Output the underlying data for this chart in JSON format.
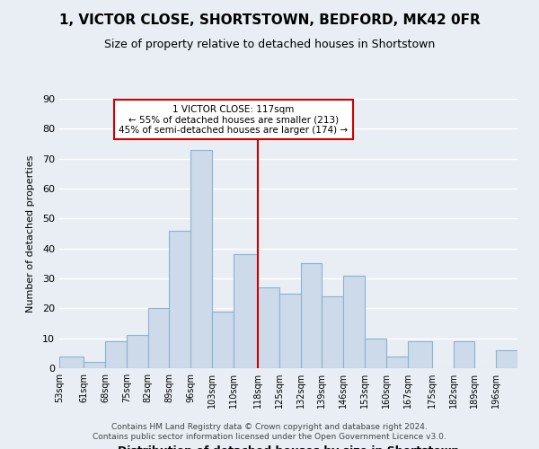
{
  "title_line1": "1, VICTOR CLOSE, SHORTSTOWN, BEDFORD, MK42 0FR",
  "title_line2": "Size of property relative to detached houses in Shortstown",
  "xlabel": "Distribution of detached houses by size in Shortstown",
  "ylabel": "Number of detached properties",
  "footer_line1": "Contains HM Land Registry data © Crown copyright and database right 2024.",
  "footer_line2": "Contains public sector information licensed under the Open Government Licence v3.0.",
  "bin_labels": [
    "53sqm",
    "61sqm",
    "68sqm",
    "75sqm",
    "82sqm",
    "89sqm",
    "96sqm",
    "103sqm",
    "110sqm",
    "118sqm",
    "125sqm",
    "132sqm",
    "139sqm",
    "146sqm",
    "153sqm",
    "160sqm",
    "167sqm",
    "175sqm",
    "182sqm",
    "189sqm",
    "196sqm"
  ],
  "bar_values": [
    4,
    2,
    9,
    11,
    20,
    46,
    73,
    19,
    38,
    27,
    25,
    35,
    24,
    31,
    10,
    4,
    9,
    0,
    9,
    0,
    6
  ],
  "bar_color": "#ccdaea",
  "bar_edge_color": "#89b4d0",
  "annotation_title": "1 VICTOR CLOSE: 117sqm",
  "annotation_line2": "← 55% of detached houses are smaller (213)",
  "annotation_line3": "45% of semi-detached houses are larger (174) →",
  "annotation_box_edge_color": "#cc0000",
  "annotation_box_bg": "#ffffff",
  "red_line_x": 118,
  "ylim": [
    0,
    90
  ],
  "bin_edges": [
    53,
    61,
    68,
    75,
    82,
    89,
    96,
    103,
    110,
    118,
    125,
    132,
    139,
    146,
    153,
    160,
    167,
    175,
    182,
    189,
    196,
    203
  ],
  "background_color": "#e8eef4",
  "grid_color": "#ffffff",
  "plot_bg_color": "#e8eef4"
}
